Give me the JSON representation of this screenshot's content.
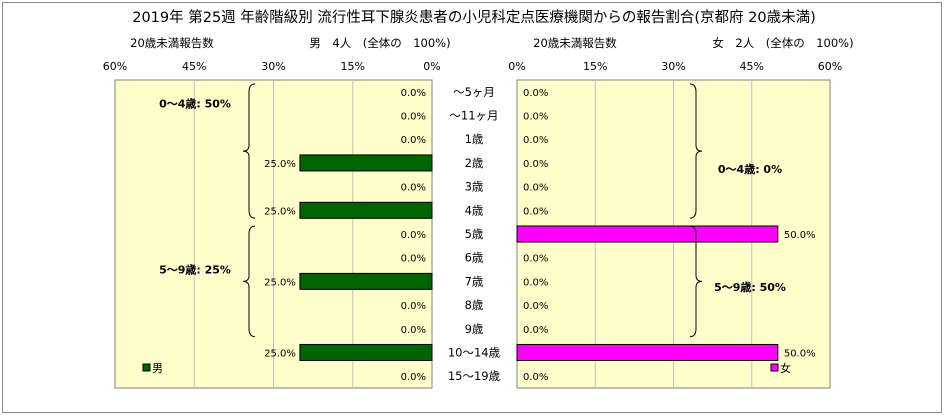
{
  "chart_data": {
    "type": "bar",
    "title": "2019年 第25週 年齢階級別 流行性耳下腺炎患者の小児科定点医療機関からの報告割合(京都府 20歳未満)",
    "categories": [
      "〜5ヶ月",
      "〜11ヶ月",
      "1歳",
      "2歳",
      "3歳",
      "4歳",
      "5歳",
      "6歳",
      "7歳",
      "8歳",
      "9歳",
      "10〜14歳",
      "15〜19歳"
    ],
    "axis_ticks": [
      "60%",
      "45%",
      "30%",
      "15%",
      "0%"
    ],
    "axis_ticks_right": [
      "0%",
      "15%",
      "30%",
      "45%",
      "60%"
    ],
    "xlim": [
      0,
      60
    ],
    "grid": true,
    "series": [
      {
        "name": "男",
        "caption": "20歳未満報告数",
        "header": "男　4人　(全体の　100%)",
        "color": "#006400",
        "values": [
          0,
          0,
          0,
          25,
          0,
          25,
          0,
          0,
          25,
          0,
          0,
          25,
          0
        ],
        "value_labels": [
          "0.0%",
          "0.0%",
          "0.0%",
          "25.0%",
          "0.0%",
          "25.0%",
          "0.0%",
          "0.0%",
          "25.0%",
          "0.0%",
          "0.0%",
          "25.0%",
          "0.0%"
        ],
        "group_annotations": [
          "0〜4歳: 50%",
          "5〜9歳: 25%"
        ]
      },
      {
        "name": "女",
        "caption": "20歳未満報告数",
        "header": "女　2人　(全体の　100%)",
        "color": "#ff00ff",
        "values": [
          0,
          0,
          0,
          0,
          0,
          0,
          50,
          0,
          0,
          0,
          0,
          50,
          0
        ],
        "value_labels": [
          "0.0%",
          "0.0%",
          "0.0%",
          "0.0%",
          "0.0%",
          "0.0%",
          "50.0%",
          "0.0%",
          "0.0%",
          "0.0%",
          "0.0%",
          "50.0%",
          "0.0%"
        ],
        "group_annotations": [
          "0〜4歳: 0%",
          "5〜9歳: 50%"
        ]
      }
    ],
    "legend": [
      "男",
      "女"
    ]
  },
  "colors": {
    "plot_bg": "#ffffcc",
    "male": "#006400",
    "female": "#ff00ff",
    "grid": "#c0c0c0"
  }
}
